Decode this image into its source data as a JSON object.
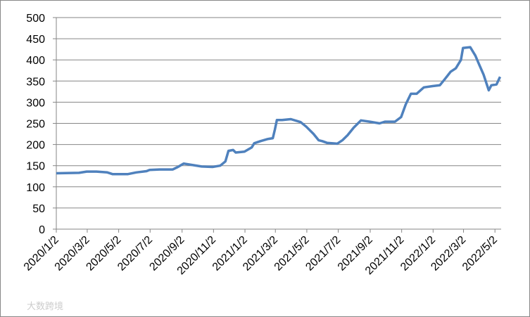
{
  "chart_data": {
    "type": "line",
    "x": [
      "2020/1/2",
      "2020/2/15",
      "2020/3/1",
      "2020/3/20",
      "2020/4/10",
      "2020/4/20",
      "2020/5/20",
      "2020/6/5",
      "2020/6/25",
      "2020/7/1",
      "2020/7/20",
      "2020/8/15",
      "2020/8/25",
      "2020/9/5",
      "2020/9/20",
      "2020/10/10",
      "2020/10/31",
      "2020/11/15",
      "2020/11/25",
      "2020/12/1",
      "2020/12/10",
      "2020/12/15",
      "2021/1/1",
      "2021/1/15",
      "2021/1/20",
      "2021/2/1",
      "2021/2/15",
      "2021/2/25",
      "2021/3/1",
      "2021/3/5",
      "2021/3/15",
      "2021/4/1",
      "2021/4/20",
      "2021/5/1",
      "2021/5/15",
      "2021/5/25",
      "2021/6/1",
      "2021/6/10",
      "2021/6/30",
      "2021/7/10",
      "2021/7/20",
      "2021/8/1",
      "2021/8/15",
      "2021/9/1",
      "2021/9/20",
      "2021/10/1",
      "2021/10/20",
      "2021/11/1",
      "2021/11/10",
      "2021/11/20",
      "2021/12/1",
      "2021/12/15",
      "2022/1/1",
      "2022/1/15",
      "2022/1/25",
      "2022/2/5",
      "2022/2/15",
      "2022/2/25",
      "2022/3/1",
      "2022/3/15",
      "2022/3/25",
      "2022/4/1",
      "2022/4/10",
      "2022/4/20",
      "2022/4/25",
      "2022/5/5",
      "2022/5/12"
    ],
    "series": [
      {
        "color": "#4f81bd",
        "values": [
          132,
          133,
          136,
          136,
          134,
          130,
          130,
          134,
          137,
          140,
          141,
          141,
          147,
          155,
          152,
          148,
          147,
          150,
          160,
          185,
          187,
          181,
          183,
          193,
          203,
          208,
          213,
          215,
          235,
          258,
          258,
          260,
          253,
          242,
          225,
          210,
          208,
          204,
          202,
          210,
          222,
          240,
          257,
          254,
          250,
          254,
          254,
          265,
          295,
          320,
          320,
          335,
          338,
          340,
          355,
          372,
          380,
          400,
          428,
          430,
          410,
          390,
          365,
          328,
          340,
          342,
          360
        ]
      }
    ],
    "xlim": [
      "2020/1/2",
      "2022/5/14"
    ],
    "xticks": [
      "2020/1/2",
      "2020/3/2",
      "2020/5/2",
      "2020/7/2",
      "2020/9/2",
      "2020/11/2",
      "2021/1/2",
      "2021/3/2",
      "2021/5/2",
      "2021/7/2",
      "2021/9/2",
      "2021/11/2",
      "2022/1/2",
      "2022/3/2",
      "2022/5/2"
    ],
    "ylim": [
      0,
      500
    ],
    "yticks": [
      0,
      50,
      100,
      150,
      200,
      250,
      300,
      350,
      400,
      450,
      500
    ],
    "grid": true,
    "watermark": "大数跨境"
  }
}
